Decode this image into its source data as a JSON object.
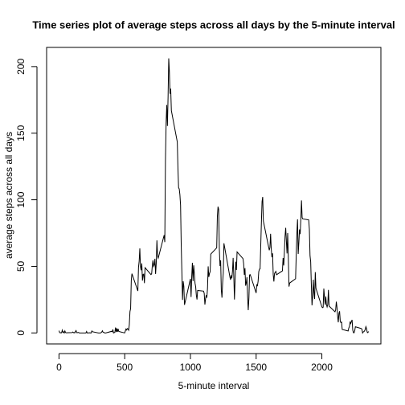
{
  "chart_data": {
    "type": "line",
    "title": "Time series plot of average steps across all days by the 5-minute interval",
    "xlabel": "5-minute interval",
    "ylabel": "average steps across all days",
    "xlim": [
      -94.2,
      2449.2
    ],
    "ylim": [
      -8.25,
      214.4
    ],
    "xticks": [
      0,
      500,
      1000,
      1500,
      2000
    ],
    "yticks": [
      0,
      50,
      100,
      150,
      200
    ],
    "x": [
      0,
      5,
      10,
      15,
      20,
      25,
      30,
      35,
      40,
      45,
      50,
      55,
      100,
      105,
      110,
      115,
      120,
      125,
      130,
      135,
      140,
      145,
      150,
      155,
      200,
      205,
      210,
      215,
      220,
      225,
      230,
      235,
      240,
      245,
      250,
      255,
      300,
      305,
      310,
      315,
      320,
      325,
      330,
      335,
      340,
      345,
      350,
      355,
      400,
      405,
      410,
      415,
      420,
      425,
      430,
      435,
      440,
      445,
      450,
      455,
      500,
      505,
      510,
      515,
      520,
      525,
      530,
      535,
      540,
      545,
      550,
      555,
      600,
      605,
      610,
      615,
      620,
      625,
      630,
      635,
      640,
      645,
      650,
      655,
      700,
      705,
      710,
      715,
      720,
      725,
      730,
      735,
      740,
      745,
      750,
      755,
      800,
      805,
      810,
      815,
      820,
      825,
      830,
      835,
      840,
      845,
      850,
      855,
      900,
      905,
      910,
      915,
      920,
      925,
      930,
      935,
      940,
      945,
      950,
      955,
      1000,
      1005,
      1010,
      1015,
      1020,
      1025,
      1030,
      1035,
      1040,
      1045,
      1050,
      1055,
      1100,
      1105,
      1110,
      1115,
      1120,
      1125,
      1130,
      1135,
      1140,
      1145,
      1150,
      1155,
      1200,
      1205,
      1210,
      1215,
      1220,
      1225,
      1230,
      1235,
      1240,
      1245,
      1250,
      1255,
      1300,
      1305,
      1310,
      1315,
      1320,
      1325,
      1330,
      1335,
      1340,
      1345,
      1350,
      1355,
      1400,
      1405,
      1410,
      1415,
      1420,
      1425,
      1430,
      1435,
      1440,
      1445,
      1450,
      1455,
      1500,
      1505,
      1510,
      1515,
      1520,
      1525,
      1530,
      1535,
      1540,
      1545,
      1550,
      1555,
      1600,
      1605,
      1610,
      1615,
      1620,
      1625,
      1630,
      1635,
      1640,
      1645,
      1650,
      1655,
      1700,
      1705,
      1710,
      1715,
      1720,
      1725,
      1730,
      1735,
      1740,
      1745,
      1750,
      1755,
      1800,
      1805,
      1810,
      1815,
      1820,
      1825,
      1830,
      1835,
      1840,
      1845,
      1850,
      1855,
      1900,
      1905,
      1910,
      1915,
      1920,
      1925,
      1930,
      1935,
      1940,
      1945,
      1950,
      1955,
      2000,
      2005,
      2010,
      2015,
      2020,
      2025,
      2030,
      2035,
      2040,
      2045,
      2050,
      2055,
      2100,
      2105,
      2110,
      2115,
      2120,
      2125,
      2130,
      2135,
      2140,
      2145,
      2150,
      2155,
      2200,
      2205,
      2210,
      2215,
      2220,
      2225,
      2230,
      2235,
      2240,
      2245,
      2250,
      2255,
      2300,
      2305,
      2310,
      2315,
      2320,
      2325,
      2330,
      2335,
      2340,
      2345,
      2350,
      2355
    ],
    "series": [
      {
        "color": "#000000",
        "values": [
          1.7,
          0.3,
          0.1,
          0.2,
          0.1,
          2.1,
          0.5,
          0.9,
          0,
          1.5,
          0.3,
          0.1,
          0.3,
          0.7,
          0.2,
          0.3,
          0,
          1.1,
          1.8,
          0.2,
          0.2,
          0.4,
          0.3,
          0,
          0,
          0,
          1.1,
          0,
          0,
          0.1,
          0,
          0.2,
          0,
          0,
          1.5,
          0.9,
          0,
          0,
          0,
          0,
          0.2,
          0.6,
          1.6,
          0.6,
          0.5,
          0.1,
          0,
          0,
          1.2,
          0.9,
          2.6,
          0,
          0.3,
          0.4,
          4.1,
          0.7,
          3.5,
          0.8,
          3.1,
          1.1,
          0,
          1.6,
          3,
          2.2,
          3.3,
          3,
          2.1,
          6.1,
          16,
          18.3,
          39.5,
          44.5,
          31.5,
          49.3,
          53.8,
          63.5,
          50,
          47.1,
          52.2,
          39.3,
          44,
          44.2,
          37.4,
          49,
          43.8,
          44.4,
          50.5,
          54.5,
          49.9,
          51,
          55.7,
          44.3,
          52.3,
          69.5,
          57.8,
          56.2,
          73.4,
          68.2,
          129.4,
          157.5,
          171.2,
          155.4,
          177.3,
          206.2,
          195.9,
          179.6,
          183.4,
          167,
          143.5,
          124,
          109.1,
          108.1,
          103.7,
          96,
          66.2,
          45.2,
          24.8,
          38.8,
          35,
          21.1,
          40.6,
          27,
          42.4,
          52.7,
          38.9,
          50.8,
          44.3,
          37.4,
          34.7,
          28.3,
          25.1,
          31.9,
          31.4,
          29.7,
          21.3,
          25.5,
          28.4,
          26.5,
          33.4,
          50,
          42,
          44.6,
          46,
          59.2,
          63.9,
          87.7,
          94.8,
          92.8,
          63.4,
          50.2,
          54.5,
          32.4,
          26.5,
          37.7,
          45.1,
          67.3,
          42.3,
          39.9,
          43.3,
          41,
          46.2,
          56.4,
          42.8,
          25.1,
          40,
          53.5,
          47.3,
          60.8,
          55.8,
          52,
          43.6,
          48.7,
          35.5,
          37.5,
          41.8,
          27.5,
          17.1,
          26.1,
          43.6,
          43.8,
          30,
          36.1,
          35.5,
          38.8,
          46,
          47.8,
          48.1,
          65.3,
          82.9,
          98.7,
          102.1,
          84,
          62.1,
          64.1,
          74.5,
          63.2,
          56.9,
          59.8,
          43.9,
          38.6,
          44.7,
          45.5,
          46.2,
          43.7,
          46.6,
          56.3,
          50.7,
          61.2,
          72.7,
          78.9,
          68.9,
          59.7,
          75.1,
          56.5,
          34.8,
          37.5,
          40.7,
          58,
          74.7,
          85.3,
          59.3,
          67.8,
          77.7,
          74.2,
          85.3,
          99.5,
          86.6,
          85.6,
          84.9,
          77.8,
          58,
          53.4,
          36.3,
          20.7,
          27.4,
          40,
          30.2,
          25.5,
          45.7,
          33.5,
          19.6,
          19,
          19.3,
          33.3,
          26.8,
          21.2,
          27.3,
          21.3,
          19.5,
          21.3,
          32.3,
          20.2,
          15.9,
          17.2,
          23.5,
          19.2,
          12.5,
          8,
          14.7,
          16.3,
          8.7,
          7.8,
          8.1,
          2.6,
          1.5,
          3.7,
          4.8,
          8.5,
          7.1,
          8.7,
          9.8,
          2.2,
          0.3,
          0.1,
          1.6,
          4.6,
          3.3,
          2.8,
          0,
          0.8,
          1,
          1.6,
          2.6,
          4.7,
          3.3,
          0.6,
          0.2,
          1.1
        ]
      }
    ]
  }
}
